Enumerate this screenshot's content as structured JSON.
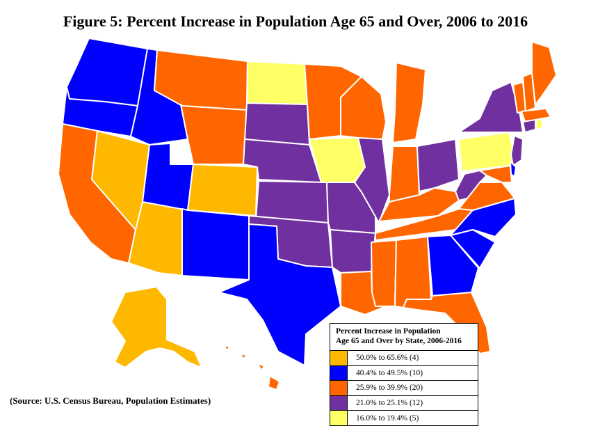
{
  "title": "Figure 5:  Percent Increase in Population Age 65 and Over, 2006 to 2016",
  "source": "(Source: U.S. Census Bureau, Population  Estimates)",
  "legend": {
    "title_line1": "Percent Increase  in Population",
    "title_line2": "Age 65 and  Over by  State, 2006-2016",
    "items": [
      {
        "label": "50.0% to 65.6% (4)",
        "color": "#FFB800"
      },
      {
        "label": "40.4% to 49.5% (10)",
        "color": "#0000FF"
      },
      {
        "label": "25.9% to 39.9% (20)",
        "color": "#FF6600"
      },
      {
        "label": "21.0% to 25.1% (12)",
        "color": "#7030A0"
      },
      {
        "label": "16.0% to 19.4% (5)",
        "color": "#FFFF66"
      }
    ]
  },
  "colors": {
    "tier1": "#FFB800",
    "tier2": "#0000FF",
    "tier3": "#FF6600",
    "tier4": "#7030A0",
    "tier5": "#FFFF66"
  }
}
